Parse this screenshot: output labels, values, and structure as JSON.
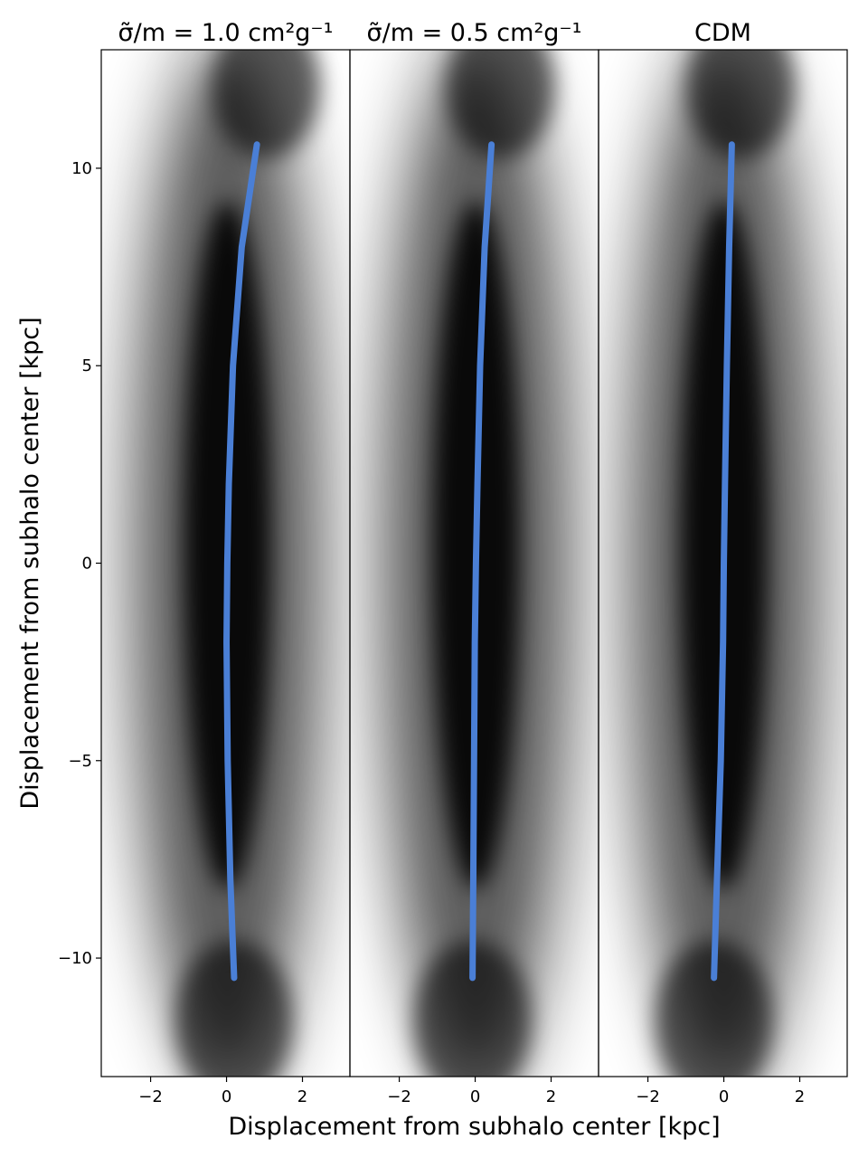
{
  "chart_data": [
    {
      "type": "line",
      "title": "σ̃/m = 1.0 cm²g⁻¹",
      "ylabel": "Displacement from subhalo center [kpc]",
      "xlim": [
        -3.3,
        3.25
      ],
      "ylim": [
        -13,
        13
      ],
      "xticks": [
        {
          "value": -2,
          "label": "−2"
        },
        0,
        2
      ],
      "yticks": [
        {
          "value": -10,
          "label": "−10"
        },
        {
          "value": -5,
          "label": "−5"
        },
        0,
        5,
        10
      ],
      "series": [
        {
          "color": "#4a7fd6",
          "x": [
            0.2,
            0.1,
            0.03,
            0.0,
            0.02,
            0.06,
            0.17,
            0.4,
            0.8
          ],
          "values": [
            -10.5,
            -8,
            -5,
            -2,
            0,
            2,
            5,
            8,
            10.6
          ]
        }
      ]
    },
    {
      "type": "line",
      "title": "σ̃/m = 0.5 cm²g⁻¹",
      "xlabel": "Displacement from subhalo center [kpc]",
      "xlim": [
        -3.3,
        3.25
      ],
      "ylim": [
        -13,
        13
      ],
      "xticks": [
        {
          "value": -2,
          "label": "−2"
        },
        0,
        2
      ],
      "series": [
        {
          "color": "#4a7fd6",
          "x": [
            -0.07,
            -0.05,
            -0.03,
            -0.01,
            0.02,
            0.06,
            0.13,
            0.25,
            0.43
          ],
          "values": [
            -10.5,
            -8,
            -5,
            -2,
            0,
            2,
            5,
            8,
            10.6
          ]
        }
      ]
    },
    {
      "type": "line",
      "title": "CDM",
      "xlim": [
        -3.3,
        3.25
      ],
      "ylim": [
        -13,
        13
      ],
      "xticks": [
        {
          "value": -2,
          "label": "−2"
        },
        0,
        2
      ],
      "series": [
        {
          "color": "#4a7fd6",
          "x": [
            -0.26,
            -0.18,
            -0.08,
            -0.02,
            0.0,
            0.03,
            0.08,
            0.14,
            0.21
          ],
          "values": [
            -10.5,
            -8,
            -5,
            -2,
            0,
            2,
            5,
            8,
            10.6
          ]
        }
      ]
    }
  ]
}
